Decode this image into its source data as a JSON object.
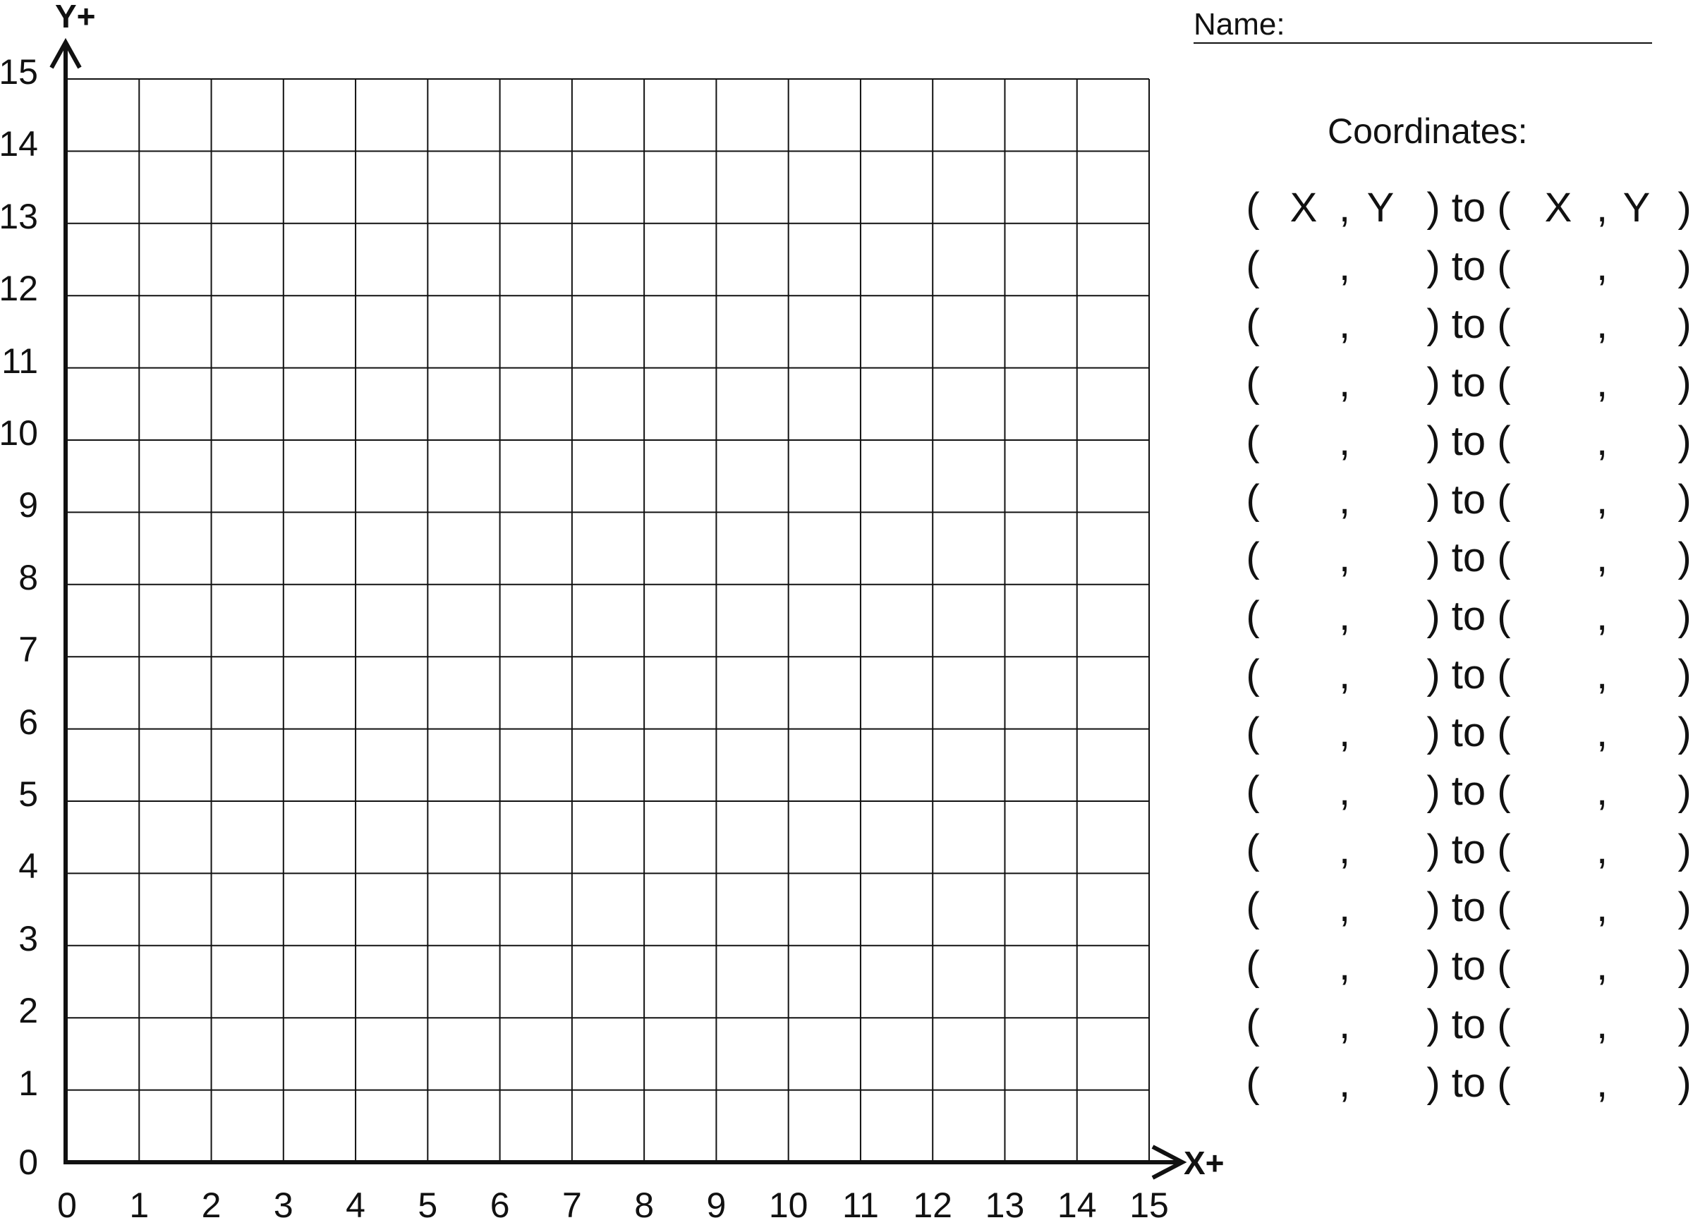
{
  "header": {
    "name_label": "Name:",
    "coordinates_title": "Coordinates:"
  },
  "axes": {
    "x_label": "X+",
    "y_label": "Y+",
    "x_ticks": [
      "0",
      "1",
      "2",
      "3",
      "4",
      "5",
      "6",
      "7",
      "8",
      "9",
      "10",
      "11",
      "12",
      "13",
      "14",
      "15"
    ],
    "y_ticks": [
      "0",
      "1",
      "2",
      "3",
      "4",
      "5",
      "6",
      "7",
      "8",
      "9",
      "10",
      "11",
      "12",
      "13",
      "14",
      "15"
    ],
    "x_range": [
      0,
      15
    ],
    "y_range": [
      0,
      15
    ],
    "grid": true
  },
  "coordinate_rows": {
    "header": {
      "open1": "(",
      "x1": "X",
      "comma1": ",",
      "y1": "Y",
      "to": ") to (",
      "x2": "X",
      "comma2": ",",
      "y2": "Y",
      "close2": ")"
    },
    "blank": {
      "open1": "(",
      "comma1": ",",
      "to": ") to (",
      "comma2": ",",
      "close2": ")"
    },
    "blank_row_count": 15
  },
  "colors": {
    "ink": "#111111",
    "background": "#ffffff"
  }
}
